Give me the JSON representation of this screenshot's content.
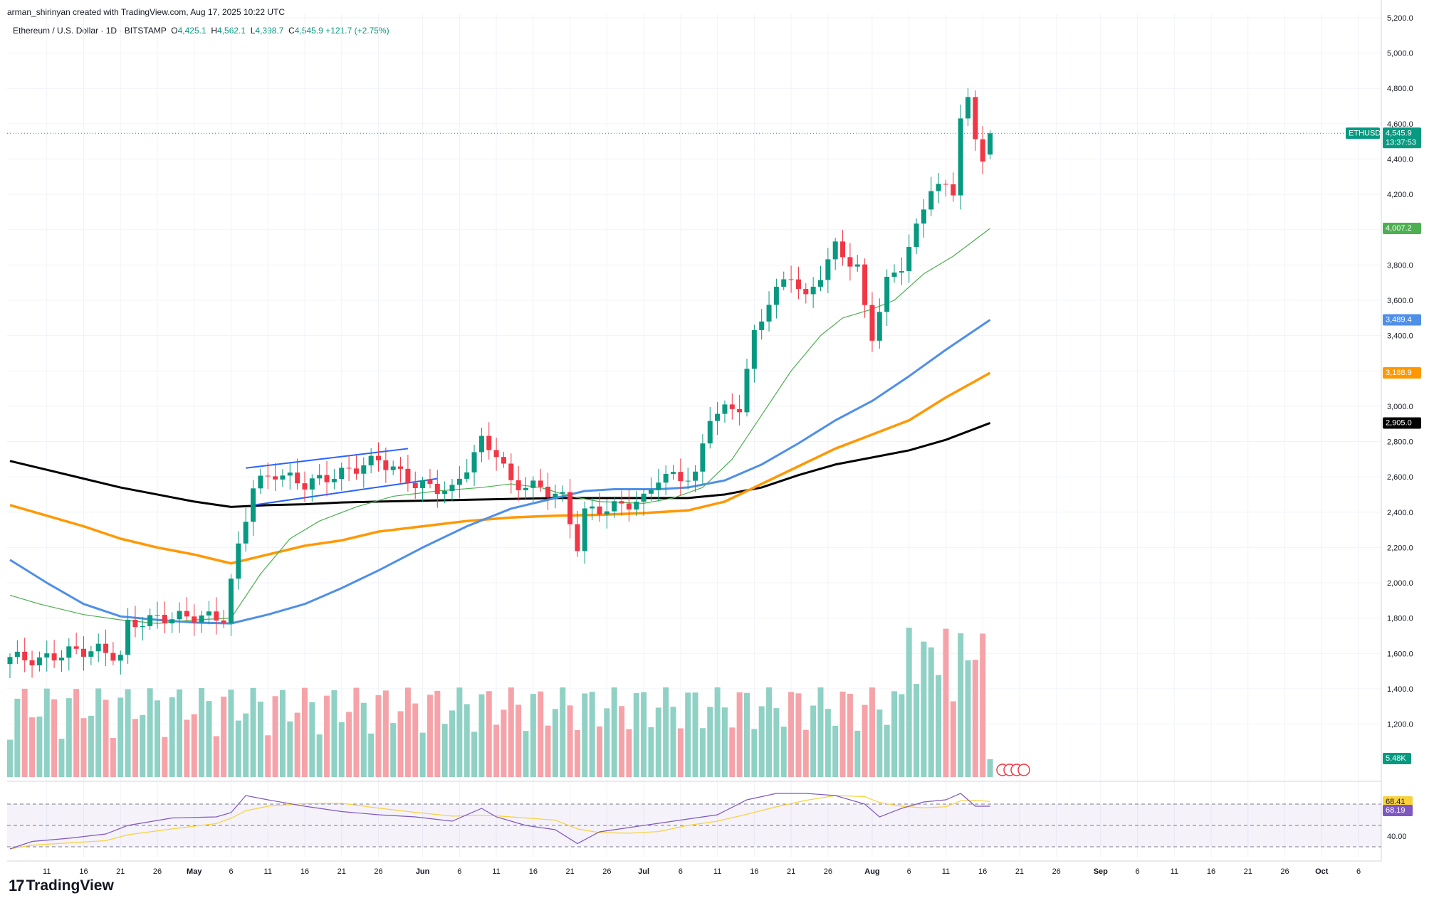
{
  "header": {
    "credit": "arman_shirinyan created with TradingView.com, Aug 17, 2025 10:22 UTC",
    "symbol_line": "Ethereum / U.S. Dollar · 1D · BITSTAMP",
    "o_label": "O",
    "o_value": "4,425.1",
    "h_label": "H",
    "h_value": "4,562.1",
    "l_label": "L",
    "l_value": "4,398.7",
    "c_label": "C",
    "c_value": "4,545.9",
    "change": "+121.7 (+2.75%)"
  },
  "brand": {
    "logo_mark": "17",
    "name": "TradingView"
  },
  "colors": {
    "up": "#089981",
    "down": "#f23645",
    "vol_up": "#8fd1c4",
    "vol_down": "#f5a3a8",
    "ma20": "#4caf50",
    "ma50": "#4f8fe8",
    "ma100": "#ff9800",
    "ma200": "#000000",
    "trendline": "#2962ff",
    "rsi": "#7e57c2",
    "rsi_ma": "#f7d23e",
    "grid": "#f0f3fa",
    "axis_text": "#131722"
  },
  "chart_data": {
    "type": "candlestick",
    "title": "Ethereum / U.S. Dollar · 1D · BITSTAMP",
    "y_axis": {
      "ylim": [
        900,
        5220
      ],
      "tick_labels": [
        "1,200.0",
        "1,400.0",
        "1,600.0",
        "1,800.0",
        "2,000.0",
        "2,200.0",
        "2,400.0",
        "2,600.0",
        "2,800.0",
        "3,000.0",
        "3,200.0",
        "3,400.0",
        "3,600.0",
        "3,800.0",
        "4,000.0",
        "4,200.0",
        "4,400.0",
        "4,600.0",
        "4,800.0",
        "5,000.0",
        "5,200.0"
      ],
      "tick_values": [
        1200,
        1400,
        1600,
        1800,
        2000,
        2200,
        2400,
        2600,
        2800,
        3000,
        3200,
        3400,
        3600,
        3800,
        4000,
        4200,
        4400,
        4600,
        4800,
        5000,
        5200
      ]
    },
    "x_axis": {
      "start_date": "2025-04-06",
      "end_date": "2025-10-09",
      "tick_labels": [
        {
          "label": "11",
          "day": 5
        },
        {
          "label": "16",
          "day": 10
        },
        {
          "label": "21",
          "day": 15
        },
        {
          "label": "26",
          "day": 20
        },
        {
          "label": "May",
          "day": 25
        },
        {
          "label": "6",
          "day": 30
        },
        {
          "label": "11",
          "day": 35
        },
        {
          "label": "16",
          "day": 40
        },
        {
          "label": "21",
          "day": 45
        },
        {
          "label": "26",
          "day": 50
        },
        {
          "label": "Jun",
          "day": 56
        },
        {
          "label": "6",
          "day": 61
        },
        {
          "label": "11",
          "day": 66
        },
        {
          "label": "16",
          "day": 71
        },
        {
          "label": "21",
          "day": 76
        },
        {
          "label": "26",
          "day": 81
        },
        {
          "label": "Jul",
          "day": 86
        },
        {
          "label": "6",
          "day": 91
        },
        {
          "label": "11",
          "day": 96
        },
        {
          "label": "16",
          "day": 101
        },
        {
          "label": "21",
          "day": 106
        },
        {
          "label": "26",
          "day": 111
        },
        {
          "label": "Aug",
          "day": 117
        },
        {
          "label": "6",
          "day": 122
        },
        {
          "label": "11",
          "day": 127
        },
        {
          "label": "16",
          "day": 132
        },
        {
          "label": "21",
          "day": 137
        },
        {
          "label": "26",
          "day": 142
        },
        {
          "label": "Sep",
          "day": 148
        },
        {
          "label": "6",
          "day": 153
        },
        {
          "label": "11",
          "day": 158
        },
        {
          "label": "16",
          "day": 163
        },
        {
          "label": "21",
          "day": 168
        },
        {
          "label": "26",
          "day": 173
        },
        {
          "label": "Oct",
          "day": 178
        },
        {
          "label": "6",
          "day": 183
        }
      ]
    },
    "key_closes": [
      {
        "day": 0,
        "close": 1580
      },
      {
        "day": 4,
        "close": 1560
      },
      {
        "day": 8,
        "close": 1610
      },
      {
        "day": 12,
        "close": 1620
      },
      {
        "day": 15,
        "close": 1580
      },
      {
        "day": 16,
        "close": 1760
      },
      {
        "day": 20,
        "close": 1800
      },
      {
        "day": 25,
        "close": 1810
      },
      {
        "day": 29,
        "close": 1800
      },
      {
        "day": 31,
        "close": 2200
      },
      {
        "day": 33,
        "close": 2550
      },
      {
        "day": 36,
        "close": 2620
      },
      {
        "day": 40,
        "close": 2560
      },
      {
        "day": 45,
        "close": 2620
      },
      {
        "day": 50,
        "close": 2700
      },
      {
        "day": 55,
        "close": 2560
      },
      {
        "day": 60,
        "close": 2520
      },
      {
        "day": 64,
        "close": 2800
      },
      {
        "day": 66,
        "close": 2740
      },
      {
        "day": 68,
        "close": 2560
      },
      {
        "day": 72,
        "close": 2540
      },
      {
        "day": 75,
        "close": 2480
      },
      {
        "day": 77,
        "close": 2210
      },
      {
        "day": 78,
        "close": 2400
      },
      {
        "day": 82,
        "close": 2430
      },
      {
        "day": 86,
        "close": 2470
      },
      {
        "day": 88,
        "close": 2600
      },
      {
        "day": 93,
        "close": 2600
      },
      {
        "day": 95,
        "close": 2950
      },
      {
        "day": 99,
        "close": 3000
      },
      {
        "day": 101,
        "close": 3400
      },
      {
        "day": 103,
        "close": 3600
      },
      {
        "day": 106,
        "close": 3750
      },
      {
        "day": 108,
        "close": 3600
      },
      {
        "day": 112,
        "close": 3900
      },
      {
        "day": 115,
        "close": 3780
      },
      {
        "day": 116,
        "close": 3550
      },
      {
        "day": 117,
        "close": 3400
      },
      {
        "day": 119,
        "close": 3700
      },
      {
        "day": 121,
        "close": 3800
      },
      {
        "day": 123,
        "close": 4000
      },
      {
        "day": 125,
        "close": 4250
      },
      {
        "day": 128,
        "close": 4220
      },
      {
        "day": 129,
        "close": 4650
      },
      {
        "day": 130,
        "close": 4720
      },
      {
        "day": 131,
        "close": 4500
      },
      {
        "day": 132,
        "close": 4420
      },
      {
        "day": 133,
        "close": 4546
      }
    ],
    "moving_averages": [
      {
        "name": "MA20",
        "last_value": "4,007.2",
        "color": "#4caf50"
      },
      {
        "name": "MA50",
        "last_value": "3,489.4",
        "color": "#4f8fe8"
      },
      {
        "name": "MA100",
        "last_value": "3,188.9",
        "color": "#ff9800"
      },
      {
        "name": "MA200",
        "last_value": "2,905.0",
        "color": "#000000"
      }
    ],
    "ma_series": {
      "ma20": [
        [
          0,
          1930
        ],
        [
          4,
          1880
        ],
        [
          10,
          1820
        ],
        [
          15,
          1790
        ],
        [
          20,
          1770
        ],
        [
          25,
          1790
        ],
        [
          30,
          1800
        ],
        [
          34,
          2050
        ],
        [
          38,
          2250
        ],
        [
          42,
          2350
        ],
        [
          47,
          2430
        ],
        [
          52,
          2490
        ],
        [
          58,
          2520
        ],
        [
          64,
          2540
        ],
        [
          68,
          2560
        ],
        [
          72,
          2540
        ],
        [
          76,
          2490
        ],
        [
          80,
          2460
        ],
        [
          86,
          2450
        ],
        [
          90,
          2480
        ],
        [
          94,
          2540
        ],
        [
          98,
          2700
        ],
        [
          102,
          2950
        ],
        [
          106,
          3200
        ],
        [
          110,
          3400
        ],
        [
          113,
          3500
        ],
        [
          117,
          3550
        ],
        [
          120,
          3600
        ],
        [
          124,
          3750
        ],
        [
          128,
          3850
        ],
        [
          133,
          4007
        ]
      ],
      "ma50": [
        [
          0,
          2130
        ],
        [
          5,
          2000
        ],
        [
          10,
          1880
        ],
        [
          15,
          1810
        ],
        [
          20,
          1790
        ],
        [
          25,
          1775
        ],
        [
          30,
          1770
        ],
        [
          35,
          1820
        ],
        [
          40,
          1880
        ],
        [
          45,
          1970
        ],
        [
          50,
          2070
        ],
        [
          56,
          2200
        ],
        [
          62,
          2320
        ],
        [
          68,
          2420
        ],
        [
          74,
          2480
        ],
        [
          78,
          2520
        ],
        [
          82,
          2530
        ],
        [
          88,
          2530
        ],
        [
          92,
          2540
        ],
        [
          97,
          2580
        ],
        [
          102,
          2670
        ],
        [
          107,
          2790
        ],
        [
          112,
          2920
        ],
        [
          117,
          3030
        ],
        [
          122,
          3170
        ],
        [
          127,
          3320
        ],
        [
          133,
          3489
        ]
      ],
      "ma100": [
        [
          0,
          2440
        ],
        [
          5,
          2380
        ],
        [
          10,
          2320
        ],
        [
          15,
          2250
        ],
        [
          20,
          2200
        ],
        [
          25,
          2160
        ],
        [
          30,
          2110
        ],
        [
          35,
          2160
        ],
        [
          40,
          2210
        ],
        [
          45,
          2240
        ],
        [
          50,
          2290
        ],
        [
          56,
          2320
        ],
        [
          62,
          2350
        ],
        [
          68,
          2370
        ],
        [
          74,
          2380
        ],
        [
          80,
          2385
        ],
        [
          86,
          2395
        ],
        [
          92,
          2410
        ],
        [
          97,
          2460
        ],
        [
          102,
          2560
        ],
        [
          107,
          2660
        ],
        [
          112,
          2760
        ],
        [
          117,
          2840
        ],
        [
          122,
          2920
        ],
        [
          127,
          3050
        ],
        [
          133,
          3189
        ]
      ],
      "ma200": [
        [
          0,
          2690
        ],
        [
          5,
          2640
        ],
        [
          10,
          2590
        ],
        [
          15,
          2540
        ],
        [
          20,
          2500
        ],
        [
          25,
          2460
        ],
        [
          30,
          2430
        ],
        [
          35,
          2440
        ],
        [
          40,
          2445
        ],
        [
          45,
          2455
        ],
        [
          50,
          2460
        ],
        [
          56,
          2465
        ],
        [
          62,
          2470
        ],
        [
          68,
          2475
        ],
        [
          74,
          2480
        ],
        [
          80,
          2480
        ],
        [
          86,
          2480
        ],
        [
          92,
          2480
        ],
        [
          97,
          2500
        ],
        [
          102,
          2540
        ],
        [
          107,
          2610
        ],
        [
          112,
          2670
        ],
        [
          117,
          2710
        ],
        [
          122,
          2750
        ],
        [
          127,
          2810
        ],
        [
          133,
          2905
        ]
      ]
    },
    "trendlines": [
      {
        "from": {
          "day": 32,
          "price": 2650
        },
        "to": {
          "day": 54,
          "price": 2760
        }
      },
      {
        "from": {
          "day": 33,
          "price": 2440
        },
        "to": {
          "day": 58,
          "price": 2590
        }
      }
    ],
    "last_price": {
      "symbol": "ETHUSD",
      "price": "4,545.9",
      "countdown": "13:37:53",
      "value": 4545.9
    },
    "volume": {
      "last_label": "5.48K",
      "max_hint": "peak bars early/mid August"
    },
    "rsi": {
      "value_label": "68.19",
      "ma_label": "68.41",
      "level_label": "40.00",
      "upper": 70,
      "lower": 30,
      "mid": 50,
      "series": [
        [
          0,
          28
        ],
        [
          3,
          35
        ],
        [
          8,
          38
        ],
        [
          13,
          42
        ],
        [
          16,
          50
        ],
        [
          22,
          57
        ],
        [
          28,
          58
        ],
        [
          30,
          62
        ],
        [
          32,
          78
        ],
        [
          35,
          74
        ],
        [
          40,
          68
        ],
        [
          45,
          63
        ],
        [
          50,
          60
        ],
        [
          55,
          58
        ],
        [
          60,
          54
        ],
        [
          64,
          66
        ],
        [
          66,
          58
        ],
        [
          70,
          50
        ],
        [
          74,
          46
        ],
        [
          77,
          33
        ],
        [
          80,
          44
        ],
        [
          84,
          48
        ],
        [
          88,
          52
        ],
        [
          92,
          56
        ],
        [
          96,
          60
        ],
        [
          100,
          74
        ],
        [
          104,
          80
        ],
        [
          108,
          80
        ],
        [
          112,
          78
        ],
        [
          116,
          70
        ],
        [
          118,
          58
        ],
        [
          121,
          66
        ],
        [
          124,
          72
        ],
        [
          127,
          74
        ],
        [
          129,
          80
        ],
        [
          131,
          68
        ],
        [
          133,
          68
        ]
      ]
    }
  }
}
